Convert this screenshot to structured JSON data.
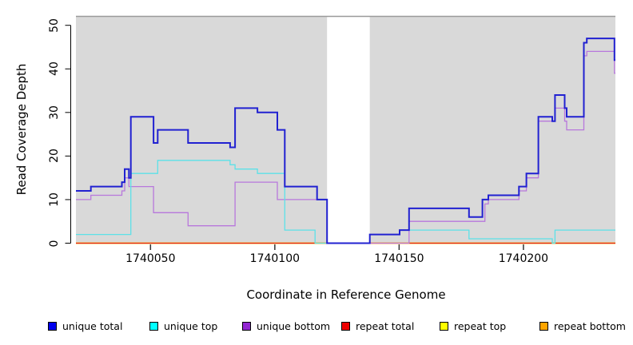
{
  "chart_data": {
    "type": "line",
    "subtype": "step-coverage",
    "title": "",
    "xlabel": "Coordinate in Reference Genome",
    "ylabel": "Read Coverage Depth",
    "xlim": [
      1740020,
      1740237
    ],
    "ylim": [
      0,
      52
    ],
    "x_ticks": [
      1740050,
      1740100,
      1740150,
      1740200
    ],
    "y_ticks": [
      0,
      10,
      20,
      30,
      40,
      50
    ],
    "grid": "off",
    "legend_position": "bottom",
    "plot_background": "#d9d9d9",
    "no_data_gap": [
      1740121,
      1740138.2
    ],
    "series": [
      {
        "name": "unique total",
        "swatch_color": "#0000ee",
        "line_color": "#2121d1",
        "line_width": 2,
        "points": [
          [
            1740020,
            12
          ],
          [
            1740026,
            13
          ],
          [
            1740038.5,
            14
          ],
          [
            1740039.6,
            17
          ],
          [
            1740041.3,
            15
          ],
          [
            1740042.1,
            29
          ],
          [
            1740051.2,
            23
          ],
          [
            1740052.9,
            26
          ],
          [
            1740065.1,
            23
          ],
          [
            1740082,
            22
          ],
          [
            1740084,
            31
          ],
          [
            1740093,
            30
          ],
          [
            1740101,
            26
          ],
          [
            1740104,
            13
          ],
          [
            1740117,
            10
          ],
          [
            1740121,
            0
          ],
          [
            1740138.2,
            2
          ],
          [
            1740150.2,
            3
          ],
          [
            1740154,
            8
          ],
          [
            1740178.1,
            6
          ],
          [
            1740183.5,
            10
          ],
          [
            1740185.9,
            11
          ],
          [
            1740198.2,
            13
          ],
          [
            1740201.2,
            16
          ],
          [
            1740206,
            29
          ],
          [
            1740211.6,
            28
          ],
          [
            1740212.7,
            34
          ],
          [
            1740216.6,
            31
          ],
          [
            1740217.4,
            29
          ],
          [
            1740224.3,
            46
          ],
          [
            1740225.5,
            47
          ],
          [
            1740236.6,
            42
          ]
        ]
      },
      {
        "name": "unique top",
        "swatch_color": "#00ffff",
        "line_color": "#5ce1e8",
        "line_width": 1.3,
        "points": [
          [
            1740020,
            2
          ],
          [
            1740042.1,
            16
          ],
          [
            1740052.9,
            19
          ],
          [
            1740082,
            18
          ],
          [
            1740084,
            17
          ],
          [
            1740093,
            16
          ],
          [
            1740104,
            3
          ],
          [
            1740116.2,
            0
          ],
          [
            1740138.2,
            2
          ],
          [
            1740150.2,
            3
          ],
          [
            1740178.1,
            1
          ],
          [
            1740211.6,
            0
          ],
          [
            1740212.7,
            3
          ]
        ]
      },
      {
        "name": "unique bottom",
        "swatch_color": "#9326d2",
        "line_color": "#b878dc",
        "line_width": 1.3,
        "points": [
          [
            1740020,
            10
          ],
          [
            1740026,
            11
          ],
          [
            1740038.5,
            12
          ],
          [
            1740039.6,
            15
          ],
          [
            1740041.3,
            13
          ],
          [
            1740051.2,
            7
          ],
          [
            1740065.1,
            4
          ],
          [
            1740084,
            14
          ],
          [
            1740101,
            10
          ],
          [
            1740121,
            0
          ],
          [
            1740154,
            5
          ],
          [
            1740184.5,
            9
          ],
          [
            1740185.9,
            10
          ],
          [
            1740198.2,
            12
          ],
          [
            1740201.2,
            15
          ],
          [
            1740206,
            28
          ],
          [
            1740212.7,
            31
          ],
          [
            1740216.6,
            28
          ],
          [
            1740217.4,
            26
          ],
          [
            1740224.3,
            43
          ],
          [
            1740225.5,
            44
          ],
          [
            1740236.6,
            39
          ]
        ]
      },
      {
        "name": "repeat total",
        "swatch_color": "#ee0000",
        "line_color": "#dd2222",
        "line_width": 1,
        "points": [
          [
            1740020,
            0
          ]
        ]
      },
      {
        "name": "repeat top",
        "swatch_color": "#ffff00",
        "line_color": "#eeee33",
        "line_width": 1,
        "points": [
          [
            1740020,
            0
          ]
        ]
      },
      {
        "name": "repeat bottom",
        "swatch_color": "#ffa500",
        "line_color": "#ffa513",
        "line_width": 2,
        "points": [
          [
            1740020,
            0
          ]
        ]
      }
    ]
  },
  "legend_item_lefts": [
    60,
    187,
    303,
    427,
    550,
    675
  ]
}
